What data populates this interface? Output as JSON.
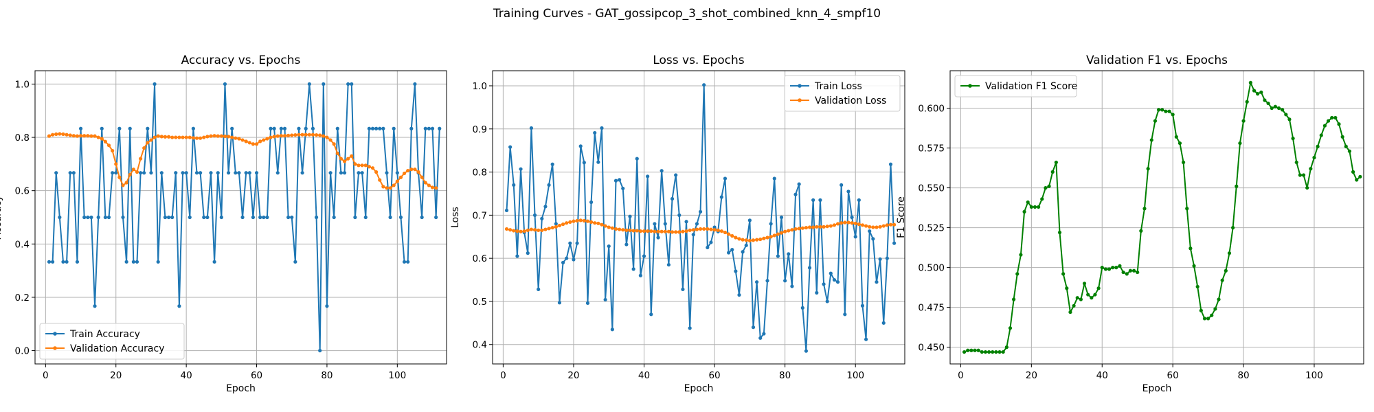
{
  "suptitle": "Training Curves - GAT_gossipcop_3_shot_combined_knn_4_smpf10",
  "chart_data": [
    {
      "type": "line",
      "title": "Accuracy vs. Epochs",
      "xlabel": "Epoch",
      "ylabel": "Accuracy",
      "xlim": [
        -3,
        114
      ],
      "ylim": [
        -0.05,
        1.05
      ],
      "xticks": [
        0,
        20,
        40,
        60,
        80,
        100
      ],
      "yticks": [
        0.0,
        0.2,
        0.4,
        0.6,
        0.8,
        1.0
      ],
      "ytick_labels": [
        "0.0",
        "0.2",
        "0.4",
        "0.6",
        "0.8",
        "1.0"
      ],
      "grid": true,
      "legend_position": "lower-left",
      "series": [
        {
          "name": "Train Accuracy",
          "color": "#1f77b4",
          "values": [
            0.333,
            0.333,
            0.667,
            0.5,
            0.333,
            0.333,
            0.667,
            0.667,
            0.333,
            0.833,
            0.5,
            0.5,
            0.5,
            0.167,
            0.5,
            0.833,
            0.5,
            0.5,
            0.667,
            0.667,
            0.833,
            0.5,
            0.333,
            0.833,
            0.333,
            0.333,
            0.667,
            0.667,
            0.833,
            0.667,
            1.0,
            0.333,
            0.667,
            0.5,
            0.5,
            0.5,
            0.667,
            0.167,
            0.667,
            0.667,
            0.5,
            0.833,
            0.667,
            0.667,
            0.5,
            0.5,
            0.667,
            0.333,
            0.667,
            0.5,
            1.0,
            0.667,
            0.833,
            0.667,
            0.667,
            0.5,
            0.667,
            0.667,
            0.5,
            0.667,
            0.5,
            0.5,
            0.5,
            0.833,
            0.833,
            0.667,
            0.833,
            0.833,
            0.5,
            0.5,
            0.333,
            0.833,
            0.667,
            0.833,
            1.0,
            0.833,
            0.5,
            0.0,
            1.0,
            0.167,
            0.667,
            0.5,
            0.833,
            0.667,
            0.667,
            1.0,
            1.0,
            0.5,
            0.667,
            0.667,
            0.5,
            0.833,
            0.833,
            0.833,
            0.833,
            0.833,
            0.667,
            0.5,
            0.833,
            0.667,
            0.5,
            0.333,
            0.333,
            0.833,
            1.0,
            0.667,
            0.5,
            0.833,
            0.833,
            0.833,
            0.5,
            0.833
          ]
        },
        {
          "name": "Validation Accuracy",
          "color": "#ff7f0e",
          "values": [
            0.805,
            0.81,
            0.812,
            0.813,
            0.812,
            0.81,
            0.808,
            0.806,
            0.805,
            0.806,
            0.806,
            0.806,
            0.805,
            0.805,
            0.8,
            0.795,
            0.784,
            0.77,
            0.75,
            0.7,
            0.65,
            0.62,
            0.63,
            0.66,
            0.68,
            0.67,
            0.72,
            0.76,
            0.78,
            0.79,
            0.8,
            0.805,
            0.803,
            0.802,
            0.802,
            0.8,
            0.8,
            0.8,
            0.8,
            0.8,
            0.8,
            0.798,
            0.797,
            0.797,
            0.8,
            0.803,
            0.805,
            0.806,
            0.805,
            0.805,
            0.804,
            0.803,
            0.8,
            0.797,
            0.795,
            0.79,
            0.785,
            0.78,
            0.775,
            0.775,
            0.785,
            0.79,
            0.795,
            0.8,
            0.803,
            0.805,
            0.806,
            0.806,
            0.807,
            0.808,
            0.809,
            0.81,
            0.81,
            0.81,
            0.81,
            0.81,
            0.809,
            0.808,
            0.805,
            0.8,
            0.79,
            0.775,
            0.74,
            0.72,
            0.71,
            0.72,
            0.73,
            0.7,
            0.695,
            0.695,
            0.695,
            0.69,
            0.685,
            0.67,
            0.64,
            0.615,
            0.61,
            0.61,
            0.62,
            0.635,
            0.65,
            0.665,
            0.675,
            0.68,
            0.68,
            0.67,
            0.65,
            0.63,
            0.62,
            0.612,
            0.61
          ]
        }
      ]
    },
    {
      "type": "line",
      "title": "Loss vs. Epochs",
      "xlabel": "Epoch",
      "ylabel": "Loss",
      "xlim": [
        -3,
        114
      ],
      "ylim": [
        0.355,
        1.035
      ],
      "xticks": [
        0,
        20,
        40,
        60,
        80,
        100
      ],
      "yticks": [
        0.4,
        0.5,
        0.6,
        0.7,
        0.8,
        0.9,
        1.0
      ],
      "ytick_labels": [
        "0.4",
        "0.5",
        "0.6",
        "0.7",
        "0.8",
        "0.9",
        "1.0"
      ],
      "grid": true,
      "legend_position": "top-right",
      "series": [
        {
          "name": "Train Loss",
          "color": "#1f77b4",
          "values": [
            0.711,
            0.858,
            0.77,
            0.605,
            0.807,
            0.66,
            0.612,
            0.902,
            0.7,
            0.528,
            0.692,
            0.72,
            0.77,
            0.818,
            0.68,
            0.497,
            0.59,
            0.6,
            0.635,
            0.597,
            0.635,
            0.86,
            0.822,
            0.496,
            0.73,
            0.891,
            0.823,
            0.902,
            0.504,
            0.628,
            0.435,
            0.78,
            0.782,
            0.762,
            0.632,
            0.697,
            0.575,
            0.831,
            0.56,
            0.605,
            0.79,
            0.47,
            0.68,
            0.648,
            0.803,
            0.68,
            0.585,
            0.738,
            0.793,
            0.7,
            0.528,
            0.685,
            0.438,
            0.655,
            0.68,
            0.708,
            1.002,
            0.625,
            0.637,
            0.672,
            0.662,
            0.742,
            0.785,
            0.613,
            0.62,
            0.57,
            0.515,
            0.615,
            0.63,
            0.688,
            0.44,
            0.545,
            0.415,
            0.425,
            0.548,
            0.68,
            0.785,
            0.605,
            0.695,
            0.548,
            0.61,
            0.535,
            0.748,
            0.772,
            0.485,
            0.385,
            0.578,
            0.735,
            0.52,
            0.735,
            0.54,
            0.5,
            0.565,
            0.55,
            0.545,
            0.77,
            0.47,
            0.755,
            0.695,
            0.65,
            0.735,
            0.49,
            0.412,
            0.663,
            0.645,
            0.545,
            0.598,
            0.45,
            0.6,
            0.818,
            0.635
          ]
        },
        {
          "name": "Validation Loss",
          "color": "#ff7f0e",
          "values": [
            0.668,
            0.666,
            0.664,
            0.663,
            0.662,
            0.663,
            0.665,
            0.667,
            0.666,
            0.665,
            0.665,
            0.667,
            0.669,
            0.671,
            0.673,
            0.676,
            0.679,
            0.682,
            0.684,
            0.686,
            0.687,
            0.688,
            0.687,
            0.686,
            0.684,
            0.682,
            0.681,
            0.678,
            0.675,
            0.672,
            0.67,
            0.668,
            0.667,
            0.666,
            0.665,
            0.665,
            0.664,
            0.664,
            0.663,
            0.663,
            0.663,
            0.663,
            0.662,
            0.662,
            0.662,
            0.662,
            0.662,
            0.661,
            0.661,
            0.661,
            0.662,
            0.663,
            0.665,
            0.666,
            0.667,
            0.668,
            0.668,
            0.668,
            0.667,
            0.666,
            0.665,
            0.663,
            0.66,
            0.656,
            0.652,
            0.648,
            0.645,
            0.643,
            0.642,
            0.641,
            0.642,
            0.643,
            0.644,
            0.646,
            0.648,
            0.65,
            0.653,
            0.656,
            0.659,
            0.662,
            0.664,
            0.666,
            0.668,
            0.669,
            0.67,
            0.671,
            0.672,
            0.672,
            0.673,
            0.673,
            0.673,
            0.674,
            0.675,
            0.677,
            0.68,
            0.682,
            0.683,
            0.683,
            0.682,
            0.681,
            0.679,
            0.677,
            0.675,
            0.673,
            0.672,
            0.672,
            0.673,
            0.675,
            0.677,
            0.678,
            0.678
          ]
        }
      ]
    },
    {
      "type": "line",
      "title": "Validation F1 vs. Epochs",
      "xlabel": "Epoch",
      "ylabel": "F1 Score",
      "xlim": [
        -3,
        114
      ],
      "ylim": [
        0.4395,
        0.6235
      ],
      "xticks": [
        0,
        20,
        40,
        60,
        80,
        100
      ],
      "yticks": [
        0.45,
        0.475,
        0.5,
        0.525,
        0.55,
        0.575,
        0.6
      ],
      "ytick_labels": [
        "0.450",
        "0.475",
        "0.500",
        "0.525",
        "0.550",
        "0.575",
        "0.600"
      ],
      "grid": true,
      "legend_position": "top-left",
      "series": [
        {
          "name": "Validation F1 Score",
          "color": "#008000",
          "values": [
            0.447,
            0.448,
            0.448,
            0.448,
            0.448,
            0.447,
            0.447,
            0.447,
            0.447,
            0.447,
            0.447,
            0.447,
            0.45,
            0.462,
            0.48,
            0.496,
            0.508,
            0.535,
            0.541,
            0.538,
            0.538,
            0.538,
            0.543,
            0.55,
            0.551,
            0.56,
            0.566,
            0.522,
            0.496,
            0.487,
            0.472,
            0.476,
            0.481,
            0.48,
            0.49,
            0.483,
            0.481,
            0.483,
            0.487,
            0.5,
            0.499,
            0.499,
            0.5,
            0.5,
            0.501,
            0.497,
            0.496,
            0.498,
            0.498,
            0.497,
            0.523,
            0.537,
            0.562,
            0.58,
            0.592,
            0.599,
            0.599,
            0.598,
            0.598,
            0.596,
            0.582,
            0.578,
            0.566,
            0.537,
            0.512,
            0.501,
            0.488,
            0.473,
            0.468,
            0.468,
            0.47,
            0.474,
            0.48,
            0.492,
            0.498,
            0.509,
            0.525,
            0.551,
            0.578,
            0.592,
            0.604,
            0.616,
            0.611,
            0.609,
            0.61,
            0.605,
            0.603,
            0.6,
            0.601,
            0.6,
            0.599,
            0.596,
            0.593,
            0.581,
            0.566,
            0.558,
            0.558,
            0.55,
            0.562,
            0.569,
            0.576,
            0.583,
            0.589,
            0.592,
            0.594,
            0.594,
            0.59,
            0.582,
            0.576,
            0.573,
            0.56,
            0.555,
            0.557
          ]
        }
      ]
    }
  ]
}
